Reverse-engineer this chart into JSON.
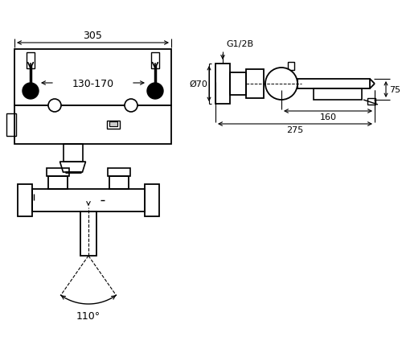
{
  "bg_color": "#ffffff",
  "line_color": "#000000",
  "fig_width": 5.0,
  "fig_height": 4.35,
  "dpi": 100,
  "dims": {
    "top_width": "305",
    "center_width": "130-170",
    "side_depth": "275",
    "side_mid": "160",
    "side_height": "75",
    "side_dia": "Ø70",
    "side_thread": "G1/2B",
    "angle": "110°"
  }
}
